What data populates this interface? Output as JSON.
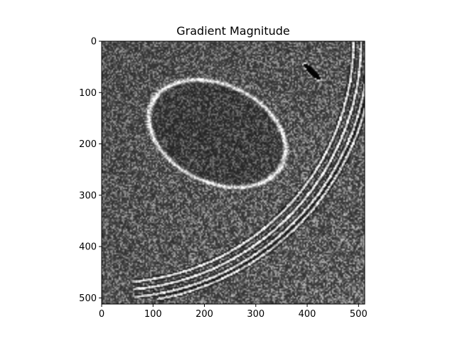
{
  "chart_data": {
    "type": "heatmap",
    "title": "Gradient Magnitude",
    "xlabel": "",
    "ylabel": "",
    "image_width": 512,
    "image_height": 512,
    "colormap": "gray",
    "xlim": [
      0,
      512
    ],
    "ylim": [
      512,
      0
    ],
    "xticks": [
      {
        "value": 0,
        "label": "0"
      },
      {
        "value": 100,
        "label": "100"
      },
      {
        "value": 200,
        "label": "200"
      },
      {
        "value": 300,
        "label": "300"
      },
      {
        "value": 400,
        "label": "400"
      },
      {
        "value": 500,
        "label": "500"
      }
    ],
    "yticks": [
      {
        "value": 0,
        "label": "0"
      },
      {
        "value": 100,
        "label": "100"
      },
      {
        "value": 200,
        "label": "200"
      },
      {
        "value": 300,
        "label": "300"
      },
      {
        "value": 400,
        "label": "400"
      },
      {
        "value": 500,
        "label": "500"
      }
    ],
    "grid": false,
    "legend": "none",
    "features": [
      {
        "kind": "ellipse",
        "cx": 225,
        "cy": 180,
        "rx": 140,
        "ry": 95,
        "rotation": 25,
        "strength": 0.9
      },
      {
        "kind": "arc",
        "cx": 20,
        "cy": 0,
        "r": 470,
        "start_deg": 0,
        "end_deg": 80,
        "strength": 1.0
      },
      {
        "kind": "arc",
        "cx": 20,
        "cy": 0,
        "r": 485,
        "start_deg": 0,
        "end_deg": 80,
        "strength": 1.0
      },
      {
        "kind": "arc",
        "cx": 20,
        "cy": 0,
        "r": 500,
        "start_deg": 5,
        "end_deg": 80,
        "strength": 0.9
      },
      {
        "kind": "arc",
        "cx": 20,
        "cy": 0,
        "r": 510,
        "start_deg": 10,
        "end_deg": 75,
        "strength": 0.8
      },
      {
        "kind": "dark_slot",
        "cx": 410,
        "cy": 60,
        "rx": 22,
        "ry": 6,
        "rotation": 45
      }
    ]
  }
}
